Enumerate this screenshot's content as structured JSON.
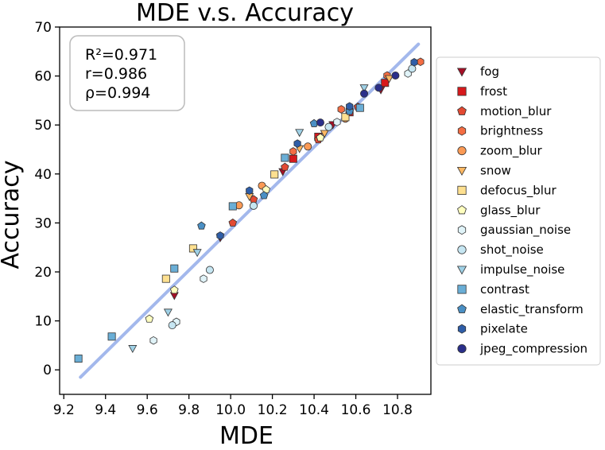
{
  "chart_data": {
    "type": "scatter",
    "title": "MDE  v.s.  Accuracy",
    "xlabel": "MDE",
    "ylabel": "Accuracy",
    "xlim": [
      9.18,
      10.96
    ],
    "ylim": [
      -5,
      70
    ],
    "xticks": [
      9.2,
      9.4,
      9.6,
      9.8,
      10.0,
      10.2,
      10.4,
      10.6,
      10.8
    ],
    "xtick_labels": [
      "9.2",
      "9.4",
      "9.6",
      "9.8",
      "10.0",
      "10.2",
      "10.4",
      "10.6",
      "10.8"
    ],
    "yticks": [
      0,
      10,
      20,
      30,
      40,
      50,
      60,
      70
    ],
    "ytick_labels": [
      "0",
      "10",
      "20",
      "30",
      "40",
      "50",
      "60",
      "70"
    ],
    "grid": false,
    "legend_position": "outside-right",
    "stats": [
      "R²=0.971",
      "r=0.986",
      "ρ=0.994"
    ],
    "fit_line": {
      "x": [
        9.28,
        10.9
      ],
      "y": [
        -1.5,
        66.5
      ],
      "color": "#a3b8ec"
    },
    "series": [
      {
        "name": "fog",
        "marker": "triangle-down",
        "color": "#a50f26",
        "points": [
          [
            9.73,
            15.2
          ],
          [
            9.95,
            27.0
          ],
          [
            10.25,
            40.5
          ],
          [
            10.49,
            50.1
          ],
          [
            10.72,
            57.2
          ]
        ]
      },
      {
        "name": "frost",
        "marker": "square",
        "color": "#d7191c",
        "points": [
          [
            10.3,
            43.1
          ],
          [
            10.42,
            47.6
          ],
          [
            10.57,
            52.6
          ],
          [
            10.74,
            58.6
          ]
        ]
      },
      {
        "name": "motion_blur",
        "marker": "pentagon",
        "color": "#e34a33",
        "points": [
          [
            10.01,
            30.0
          ],
          [
            10.11,
            34.8
          ],
          [
            10.26,
            41.4
          ],
          [
            10.42,
            47.0
          ],
          [
            10.61,
            53.7
          ]
        ]
      },
      {
        "name": "brightness",
        "marker": "hexagon",
        "color": "#f46d43",
        "points": [
          [
            10.3,
            44.6
          ],
          [
            10.53,
            53.2
          ],
          [
            10.75,
            60.1
          ],
          [
            10.91,
            62.9
          ]
        ]
      },
      {
        "name": "zoom_blur",
        "marker": "circle",
        "color": "#fb9a55",
        "points": [
          [
            10.04,
            33.6
          ],
          [
            10.15,
            37.6
          ],
          [
            10.37,
            45.6
          ],
          [
            10.55,
            51.3
          ]
        ]
      },
      {
        "name": "snow",
        "marker": "triangle-down",
        "color": "#fdb863",
        "points": [
          [
            10.09,
            35.4
          ],
          [
            10.33,
            45.2
          ],
          [
            10.45,
            48.3
          ],
          [
            10.76,
            59.5
          ]
        ]
      },
      {
        "name": "defocus_blur",
        "marker": "square",
        "color": "#fee090",
        "points": [
          [
            9.69,
            18.6
          ],
          [
            9.82,
            24.8
          ],
          [
            10.21,
            39.9
          ],
          [
            10.55,
            51.6
          ]
        ]
      },
      {
        "name": "glass_blur",
        "marker": "pentagon",
        "color": "#ffffbf",
        "points": [
          [
            9.61,
            10.4
          ],
          [
            9.73,
            16.3
          ],
          [
            10.17,
            36.8
          ],
          [
            10.43,
            47.4
          ]
        ]
      },
      {
        "name": "gaussian_noise",
        "marker": "hexagon",
        "color": "#e0f3f8",
        "points": [
          [
            9.63,
            6.0
          ],
          [
            9.74,
            9.8
          ],
          [
            9.87,
            18.6
          ],
          [
            10.51,
            50.6
          ],
          [
            10.85,
            60.5
          ]
        ]
      },
      {
        "name": "shot_noise",
        "marker": "circle",
        "color": "#c6e6f2",
        "points": [
          [
            9.72,
            9.1
          ],
          [
            9.9,
            20.4
          ],
          [
            10.11,
            33.5
          ],
          [
            10.47,
            49.6
          ],
          [
            10.87,
            61.5
          ]
        ]
      },
      {
        "name": "impulse_noise",
        "marker": "triangle-down",
        "color": "#9fd1e6",
        "points": [
          [
            9.53,
            4.4
          ],
          [
            9.7,
            11.8
          ],
          [
            9.84,
            24.0
          ],
          [
            10.33,
            48.5
          ],
          [
            10.64,
            57.6
          ]
        ]
      },
      {
        "name": "contrast",
        "marker": "square",
        "color": "#6aaed6",
        "points": [
          [
            9.27,
            2.3
          ],
          [
            9.43,
            6.8
          ],
          [
            9.73,
            20.7
          ],
          [
            10.01,
            33.4
          ],
          [
            10.26,
            43.3
          ],
          [
            10.62,
            53.5
          ]
        ]
      },
      {
        "name": "elastic_transform",
        "marker": "pentagon",
        "color": "#4a8fc4",
        "points": [
          [
            9.86,
            29.4
          ],
          [
            10.16,
            35.6
          ],
          [
            10.4,
            50.3
          ],
          [
            10.57,
            52.8
          ]
        ]
      },
      {
        "name": "pixelate",
        "marker": "hexagon",
        "color": "#2f5ea8",
        "points": [
          [
            9.95,
            27.4
          ],
          [
            10.09,
            36.6
          ],
          [
            10.32,
            46.2
          ],
          [
            10.57,
            53.8
          ],
          [
            10.88,
            62.8
          ]
        ]
      },
      {
        "name": "jpeg_compression",
        "marker": "circle",
        "color": "#2a2f8a",
        "points": [
          [
            10.43,
            50.5
          ],
          [
            10.64,
            56.4
          ],
          [
            10.71,
            57.6
          ],
          [
            10.79,
            60.1
          ]
        ]
      }
    ]
  }
}
